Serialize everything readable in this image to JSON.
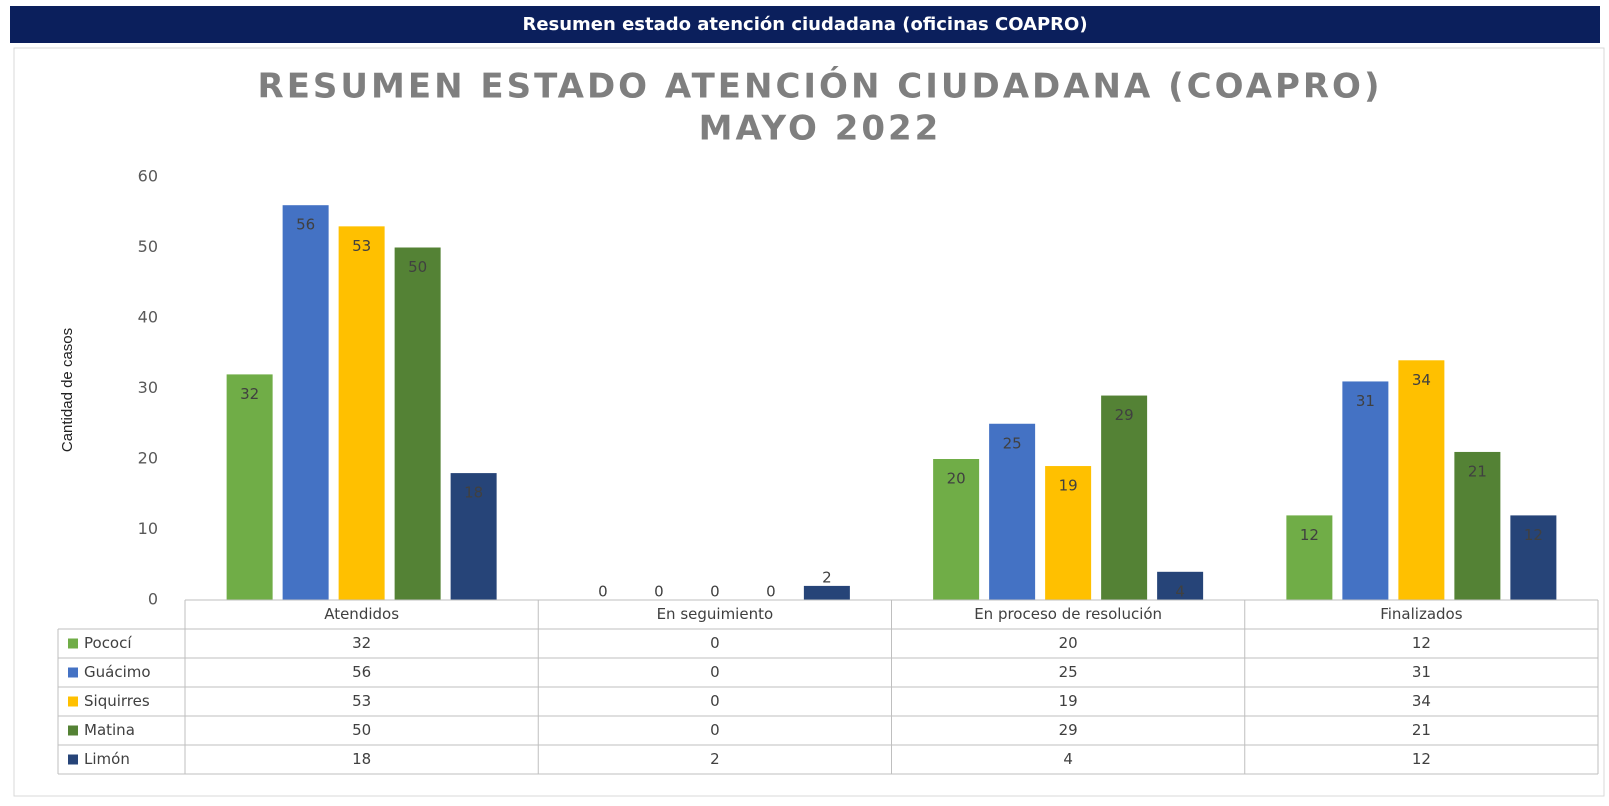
{
  "banner": "Resumen estado atención ciudadana (oficinas COAPRO)",
  "chart_data": {
    "type": "bar",
    "title": [
      "RESUMEN ESTADO ATENCIÓN CIUDADANA (COAPRO)",
      "MAYO 2022"
    ],
    "y_label": "Cantidad de casos",
    "categories": [
      "Atendidos",
      "En seguimiento",
      "En proceso de resolución",
      "Finalizados"
    ],
    "series": [
      {
        "name": "Pococí",
        "color": "#70ad47",
        "values": [
          32,
          0,
          20,
          12
        ]
      },
      {
        "name": "Guácimo",
        "color": "#4472c4",
        "values": [
          56,
          0,
          25,
          31
        ]
      },
      {
        "name": "Siquirres",
        "color": "#ffc000",
        "values": [
          53,
          0,
          19,
          34
        ]
      },
      {
        "name": "Matina",
        "color": "#548235",
        "values": [
          50,
          0,
          29,
          21
        ]
      },
      {
        "name": "Limón",
        "color": "#264478",
        "values": [
          18,
          2,
          4,
          12
        ]
      }
    ],
    "ylim": [
      0,
      60
    ],
    "yticks": [
      0,
      10,
      20,
      30,
      40,
      50,
      60
    ],
    "grid": false,
    "data_table": true
  }
}
